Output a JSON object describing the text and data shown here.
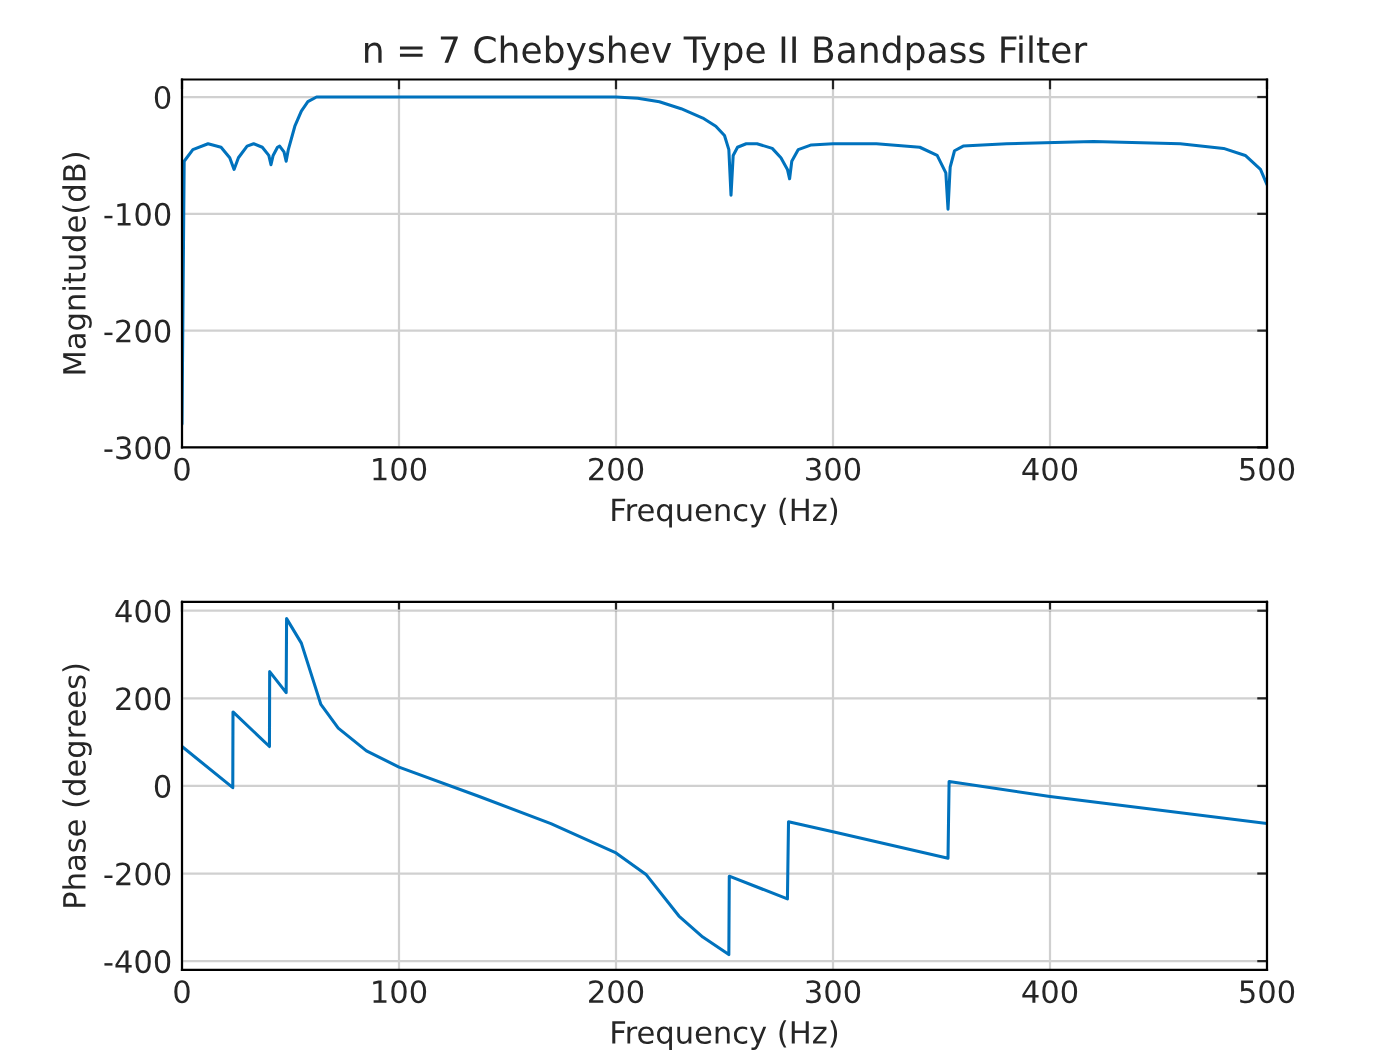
{
  "chart_data": [
    {
      "type": "line",
      "title": "n = 7 Chebyshev Type II Bandpass Filter",
      "xlabel": "Frequency (Hz)",
      "ylabel": "Magnitude(dB)",
      "xlim": [
        0,
        500
      ],
      "ylim": [
        -300,
        15
      ],
      "xticks": [
        0,
        100,
        200,
        300,
        400,
        500
      ],
      "yticks": [
        -300,
        -200,
        -100,
        0
      ],
      "grid": true,
      "legend": false,
      "series": [
        {
          "color": "#0072bd",
          "x": [
            0,
            1,
            5,
            12,
            18,
            22,
            24,
            26,
            30,
            33,
            37,
            40,
            41,
            42,
            44,
            45,
            47,
            48,
            49,
            52,
            55,
            58,
            62,
            100,
            150,
            200,
            210,
            220,
            230,
            240,
            246,
            250,
            252,
            253,
            254,
            256,
            260,
            265,
            272,
            276,
            279,
            280,
            281,
            284,
            290,
            300,
            320,
            340,
            348,
            352,
            353,
            354,
            356,
            360,
            380,
            420,
            460,
            480,
            490,
            497,
            500
          ],
          "values": [
            -280,
            -55,
            -45,
            -40,
            -43,
            -52,
            -62,
            -52,
            -42,
            -40,
            -43,
            -50,
            -58,
            -50,
            -43,
            -42,
            -47,
            -55,
            -45,
            -25,
            -12,
            -4,
            0,
            0,
            0,
            0,
            -1,
            -4,
            -10,
            -18,
            -25,
            -33,
            -45,
            -84,
            -50,
            -43,
            -40,
            -40,
            -44,
            -52,
            -62,
            -70,
            -55,
            -45,
            -41,
            -40,
            -40,
            -43,
            -50,
            -65,
            -96,
            -60,
            -46,
            -42,
            -40,
            -38,
            -40,
            -44,
            -50,
            -62,
            -75
          ]
        }
      ]
    },
    {
      "type": "line",
      "xlabel": "Frequency (Hz)",
      "ylabel": "Phase (degrees)",
      "xlim": [
        0,
        500
      ],
      "ylim": [
        -420,
        420
      ],
      "xticks": [
        0,
        100,
        200,
        300,
        400,
        500
      ],
      "yticks": [
        -400,
        -200,
        0,
        200,
        400
      ],
      "grid": true,
      "legend": false,
      "series": [
        {
          "color": "#0072bd",
          "x": [
            0,
            23.4,
            23.5,
            40.3,
            40.4,
            48,
            48.2,
            55,
            64,
            72,
            85,
            100,
            137,
            170,
            200,
            214,
            229,
            240,
            252,
            252.2,
            279,
            279.5,
            301,
            353,
            353.5,
            400,
            500
          ],
          "values": [
            90,
            -4,
            169,
            90,
            261,
            213,
            382,
            326,
            186,
            132,
            80,
            43,
            -24,
            -86,
            -153,
            -203,
            -297,
            -345,
            -385,
            -206,
            -258,
            -82,
            -106,
            -165,
            10,
            -24,
            -86
          ]
        }
      ]
    }
  ]
}
